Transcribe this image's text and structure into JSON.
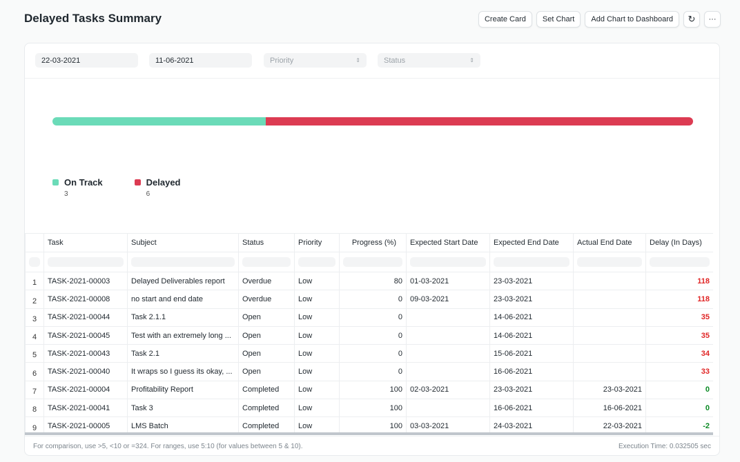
{
  "page": {
    "title": "Delayed Tasks Summary"
  },
  "actions": {
    "create_card": "Create Card",
    "set_chart": "Set Chart",
    "add_chart": "Add Chart to Dashboard",
    "refresh_icon": "refresh-icon",
    "more_icon": "ellipsis-icon"
  },
  "filters": {
    "from_date": "22-03-2021",
    "to_date": "11-06-2021",
    "priority_placeholder": "Priority",
    "status_placeholder": "Status"
  },
  "chart_data": {
    "type": "percentage-bar",
    "categories": [
      "On Track",
      "Delayed"
    ],
    "values": [
      3,
      6
    ],
    "colors": [
      "#6bdbb8",
      "#dc3b52"
    ],
    "legend": "bottom-left"
  },
  "table": {
    "columns": [
      "",
      "Task",
      "Subject",
      "Status",
      "Priority",
      "Progress (%)",
      "Expected Start Date",
      "Expected End Date",
      "Actual End Date",
      "Delay (In Days)"
    ],
    "rows": [
      [
        "1",
        "TASK-2021-00003",
        "Delayed Deliverables report",
        "Overdue",
        "Low",
        "80",
        "01-03-2021",
        "23-03-2021",
        "",
        "118"
      ],
      [
        "2",
        "TASK-2021-00008",
        "no start and end date",
        "Overdue",
        "Low",
        "0",
        "09-03-2021",
        "23-03-2021",
        "",
        "118"
      ],
      [
        "3",
        "TASK-2021-00044",
        "Task 2.1.1",
        "Open",
        "Low",
        "0",
        "",
        "14-06-2021",
        "",
        "35"
      ],
      [
        "4",
        "TASK-2021-00045",
        "Test with an extremely long ...",
        "Open",
        "Low",
        "0",
        "",
        "14-06-2021",
        "",
        "35"
      ],
      [
        "5",
        "TASK-2021-00043",
        "Task 2.1",
        "Open",
        "Low",
        "0",
        "",
        "15-06-2021",
        "",
        "34"
      ],
      [
        "6",
        "TASK-2021-00040",
        "It wraps so I guess its okay, ...",
        "Open",
        "Low",
        "0",
        "",
        "16-06-2021",
        "",
        "33"
      ],
      [
        "7",
        "TASK-2021-00004",
        "Profitability Report",
        "Completed",
        "Low",
        "100",
        "02-03-2021",
        "23-03-2021",
        "23-03-2021",
        "0"
      ],
      [
        "8",
        "TASK-2021-00041",
        "Task 3",
        "Completed",
        "Low",
        "100",
        "",
        "16-06-2021",
        "16-06-2021",
        "0"
      ],
      [
        "9",
        "TASK-2021-00005",
        "LMS Batch",
        "Completed",
        "Low",
        "100",
        "03-03-2021",
        "24-03-2021",
        "22-03-2021",
        "-2"
      ]
    ]
  },
  "footer": {
    "hint": "For comparison, use >5, <10 or =324. For ranges, use 5:10 (for values between 5 & 10).",
    "exec_time": "Execution Time: 0.032505 sec"
  }
}
